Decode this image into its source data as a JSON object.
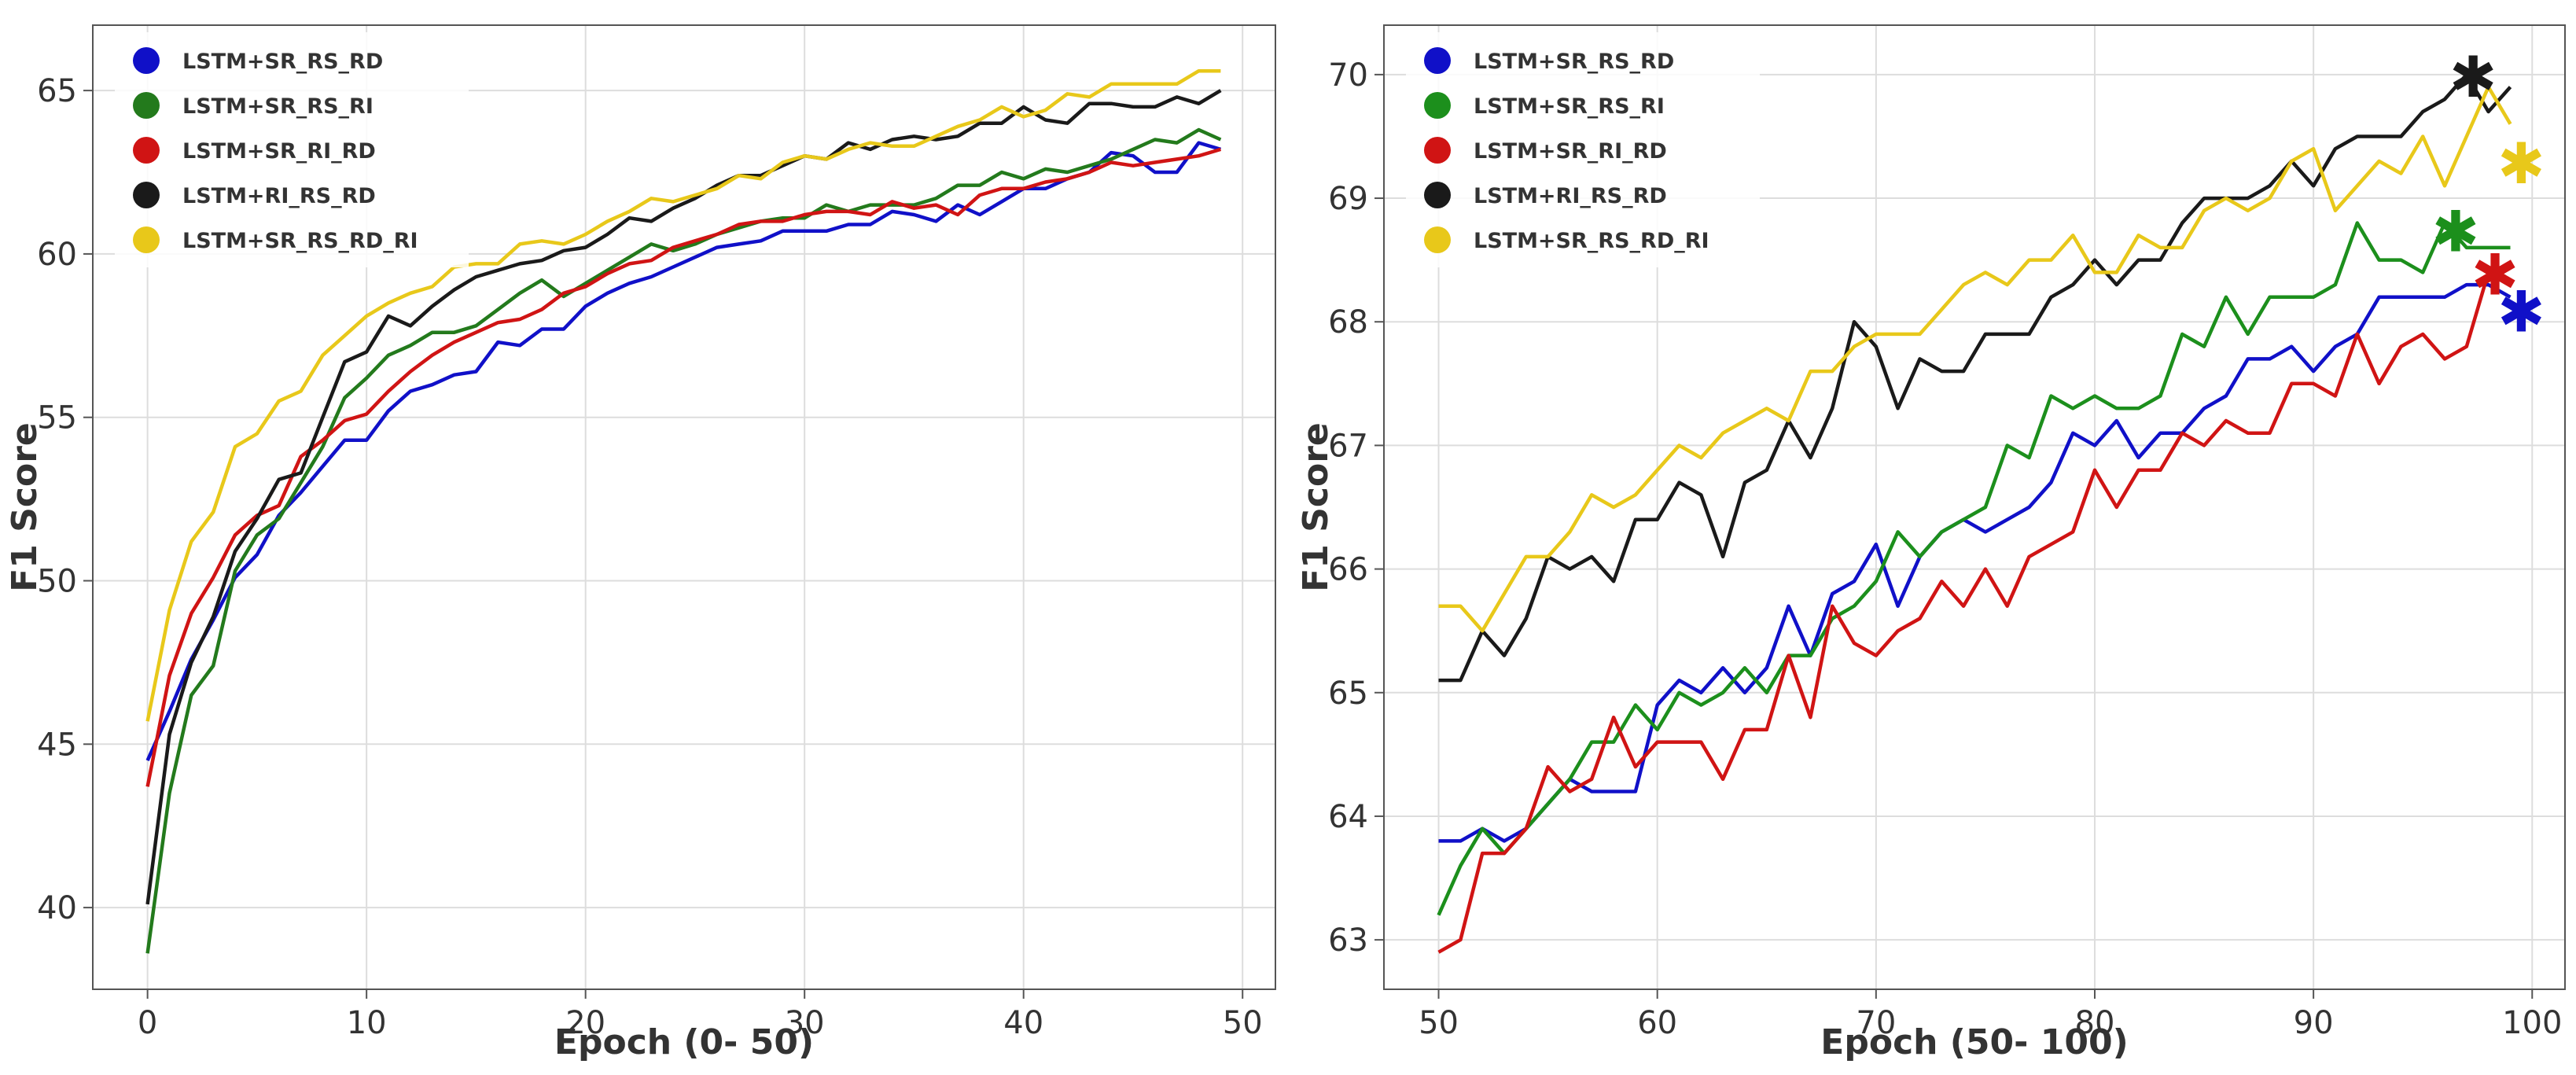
{
  "chart_data": [
    {
      "type": "line",
      "title": "",
      "xlabel": "Epoch (0- 50)",
      "ylabel": "F1 Score",
      "xlim": [
        -2.5,
        51.5
      ],
      "ylim": [
        37.5,
        67.0
      ],
      "xticks": [
        0,
        10,
        20,
        30,
        40,
        50
      ],
      "yticks": [
        40,
        45,
        50,
        55,
        60,
        65
      ],
      "grid": true,
      "legend_position": "top-left",
      "x": [
        0,
        1,
        2,
        3,
        4,
        5,
        6,
        7,
        8,
        9,
        10,
        11,
        12,
        13,
        14,
        15,
        16,
        17,
        18,
        19,
        20,
        21,
        22,
        23,
        24,
        25,
        26,
        27,
        28,
        29,
        30,
        31,
        32,
        33,
        34,
        35,
        36,
        37,
        38,
        39,
        40,
        41,
        42,
        43,
        44,
        45,
        46,
        47,
        48,
        49
      ],
      "series": [
        {
          "name": "LSTM+SR_RS_RD",
          "color": "#1010c8",
          "values": [
            44.5,
            46.0,
            47.6,
            48.8,
            50.1,
            50.8,
            52.0,
            52.7,
            53.5,
            54.3,
            54.3,
            55.2,
            55.8,
            56.0,
            56.3,
            56.4,
            57.3,
            57.2,
            57.7,
            57.7,
            58.4,
            58.8,
            59.1,
            59.3,
            59.6,
            59.9,
            60.2,
            60.3,
            60.4,
            60.7,
            60.7,
            60.7,
            60.9,
            60.9,
            61.3,
            61.2,
            61.0,
            61.5,
            61.2,
            61.6,
            62.0,
            62.0,
            62.3,
            62.5,
            63.1,
            63.0,
            62.5,
            62.5,
            63.4,
            63.2
          ]
        },
        {
          "name": "LSTM+SR_RS_RI",
          "color": "#237a1c",
          "values": [
            38.6,
            43.5,
            46.5,
            47.4,
            50.3,
            51.4,
            51.9,
            53.0,
            54.1,
            55.6,
            56.2,
            56.9,
            57.2,
            57.6,
            57.6,
            57.8,
            58.3,
            58.8,
            59.2,
            58.7,
            59.1,
            59.5,
            59.9,
            60.3,
            60.1,
            60.3,
            60.6,
            60.8,
            61.0,
            61.1,
            61.1,
            61.5,
            61.3,
            61.5,
            61.5,
            61.5,
            61.7,
            62.1,
            62.1,
            62.5,
            62.3,
            62.6,
            62.5,
            62.7,
            62.9,
            63.2,
            63.5,
            63.4,
            63.8,
            63.5
          ]
        },
        {
          "name": "LSTM+SR_RI_RD",
          "color": "#d01414",
          "values": [
            43.7,
            47.1,
            49.0,
            50.1,
            51.4,
            52.0,
            52.3,
            53.8,
            54.3,
            54.9,
            55.1,
            55.8,
            56.4,
            56.9,
            57.3,
            57.6,
            57.9,
            58.0,
            58.3,
            58.8,
            59.0,
            59.4,
            59.7,
            59.8,
            60.2,
            60.4,
            60.6,
            60.9,
            61.0,
            61.0,
            61.2,
            61.3,
            61.3,
            61.2,
            61.6,
            61.4,
            61.5,
            61.2,
            61.8,
            62.0,
            62.0,
            62.2,
            62.3,
            62.5,
            62.8,
            62.7,
            62.8,
            62.9,
            63.0,
            63.2
          ]
        },
        {
          "name": "LSTM+RI_RS_RD",
          "color": "#1a1a1a",
          "values": [
            40.1,
            45.3,
            47.5,
            48.9,
            50.9,
            51.9,
            53.1,
            53.3,
            55.0,
            56.7,
            57.0,
            58.1,
            57.8,
            58.4,
            58.9,
            59.3,
            59.5,
            59.7,
            59.8,
            60.1,
            60.2,
            60.6,
            61.1,
            61.0,
            61.4,
            61.7,
            62.1,
            62.4,
            62.4,
            62.7,
            63.0,
            62.9,
            63.4,
            63.2,
            63.5,
            63.6,
            63.5,
            63.6,
            64.0,
            64.0,
            64.5,
            64.1,
            64.0,
            64.6,
            64.6,
            64.5,
            64.5,
            64.8,
            64.6,
            65.0
          ]
        },
        {
          "name": "LSTM+SR_RS_RD_RI",
          "color": "#e8c81a",
          "values": [
            45.7,
            49.1,
            51.2,
            52.1,
            54.1,
            54.5,
            55.5,
            55.8,
            56.9,
            57.5,
            58.1,
            58.5,
            58.8,
            59.0,
            59.6,
            59.7,
            59.7,
            60.3,
            60.4,
            60.3,
            60.6,
            61.0,
            61.3,
            61.7,
            61.6,
            61.8,
            62.0,
            62.4,
            62.3,
            62.8,
            63.0,
            62.9,
            63.2,
            63.4,
            63.3,
            63.3,
            63.6,
            63.9,
            64.1,
            64.5,
            64.2,
            64.4,
            64.9,
            64.8,
            65.2,
            65.2,
            65.2,
            65.2,
            65.6,
            65.6
          ]
        }
      ]
    },
    {
      "type": "line",
      "title": "",
      "xlabel": "Epoch (50- 100)",
      "ylabel": "F1 Score",
      "xlim": [
        47.5,
        101.5
      ],
      "ylim": [
        62.6,
        70.4
      ],
      "xticks": [
        50,
        60,
        70,
        80,
        90,
        100
      ],
      "yticks": [
        63,
        64,
        65,
        66,
        67,
        68,
        69,
        70
      ],
      "grid": true,
      "legend_position": "top-left",
      "x": [
        50,
        51,
        52,
        53,
        54,
        55,
        56,
        57,
        58,
        59,
        60,
        61,
        62,
        63,
        64,
        65,
        66,
        67,
        68,
        69,
        70,
        71,
        72,
        73,
        74,
        75,
        76,
        77,
        78,
        79,
        80,
        81,
        82,
        83,
        84,
        85,
        86,
        87,
        88,
        89,
        90,
        91,
        92,
        93,
        94,
        95,
        96,
        97,
        98,
        99
      ],
      "series": [
        {
          "name": "LSTM+SR_RS_RD",
          "color": "#1010c8",
          "values": [
            63.8,
            63.8,
            63.9,
            63.8,
            63.9,
            64.1,
            64.3,
            64.2,
            64.2,
            64.2,
            64.9,
            65.1,
            65.0,
            65.2,
            65.0,
            65.2,
            65.7,
            65.3,
            65.8,
            65.9,
            66.2,
            65.7,
            66.1,
            66.3,
            66.4,
            66.3,
            66.4,
            66.5,
            66.7,
            67.1,
            67.0,
            67.2,
            66.9,
            67.1,
            67.1,
            67.3,
            67.4,
            67.7,
            67.7,
            67.8,
            67.6,
            67.8,
            67.9,
            68.2,
            68.2,
            68.2,
            68.2,
            68.3,
            68.3,
            68.2
          ],
          "marker": {
            "x": 99.5,
            "y": 68.1
          }
        },
        {
          "name": "LSTM+SR_RS_RI",
          "color": "#1c8f1c",
          "values": [
            63.2,
            63.6,
            63.9,
            63.7,
            63.9,
            64.1,
            64.3,
            64.6,
            64.6,
            64.9,
            64.7,
            65.0,
            64.9,
            65.0,
            65.2,
            65.0,
            65.3,
            65.3,
            65.6,
            65.7,
            65.9,
            66.3,
            66.1,
            66.3,
            66.4,
            66.5,
            67.0,
            66.9,
            67.4,
            67.3,
            67.4,
            67.3,
            67.3,
            67.4,
            67.9,
            67.8,
            68.2,
            67.9,
            68.2,
            68.2,
            68.2,
            68.3,
            68.8,
            68.5,
            68.5,
            68.4,
            68.8,
            68.6,
            68.6,
            68.6
          ],
          "marker": {
            "x": 96.5,
            "y": 68.75
          }
        },
        {
          "name": "LSTM+SR_RI_RD",
          "color": "#d01414",
          "values": [
            62.9,
            63.0,
            63.7,
            63.7,
            63.9,
            64.4,
            64.2,
            64.3,
            64.8,
            64.4,
            64.6,
            64.6,
            64.6,
            64.3,
            64.7,
            64.7,
            65.3,
            64.8,
            65.7,
            65.4,
            65.3,
            65.5,
            65.6,
            65.9,
            65.7,
            66.0,
            65.7,
            66.1,
            66.2,
            66.3,
            66.8,
            66.5,
            66.8,
            66.8,
            67.1,
            67.0,
            67.2,
            67.1,
            67.1,
            67.5,
            67.5,
            67.4,
            67.9,
            67.5,
            67.8,
            67.9,
            67.7,
            67.8,
            68.4,
            68.3
          ],
          "marker": {
            "x": 98.3,
            "y": 68.4
          }
        },
        {
          "name": "LSTM+RI_RS_RD",
          "color": "#1a1a1a",
          "values": [
            65.1,
            65.1,
            65.5,
            65.3,
            65.6,
            66.1,
            66.0,
            66.1,
            65.9,
            66.4,
            66.4,
            66.7,
            66.6,
            66.1,
            66.7,
            66.8,
            67.2,
            66.9,
            67.3,
            68.0,
            67.8,
            67.3,
            67.7,
            67.6,
            67.6,
            67.9,
            67.9,
            67.9,
            68.2,
            68.3,
            68.5,
            68.3,
            68.5,
            68.5,
            68.8,
            69.0,
            69.0,
            69.0,
            69.1,
            69.3,
            69.1,
            69.4,
            69.5,
            69.5,
            69.5,
            69.7,
            69.8,
            70.0,
            69.7,
            69.9
          ],
          "marker": {
            "x": 97.3,
            "y": 70.0
          }
        },
        {
          "name": "LSTM+SR_RS_RD_RI",
          "color": "#e8c81a",
          "values": [
            65.7,
            65.7,
            65.5,
            65.8,
            66.1,
            66.1,
            66.3,
            66.6,
            66.5,
            66.6,
            66.8,
            67.0,
            66.9,
            67.1,
            67.2,
            67.3,
            67.2,
            67.6,
            67.6,
            67.8,
            67.9,
            67.9,
            67.9,
            68.1,
            68.3,
            68.4,
            68.3,
            68.5,
            68.5,
            68.7,
            68.4,
            68.4,
            68.7,
            68.6,
            68.6,
            68.9,
            69.0,
            68.9,
            69.0,
            69.3,
            69.4,
            68.9,
            69.1,
            69.3,
            69.2,
            69.5,
            69.1,
            69.5,
            69.9,
            69.6
          ],
          "marker": {
            "x": 99.5,
            "y": 69.3
          }
        }
      ]
    }
  ]
}
